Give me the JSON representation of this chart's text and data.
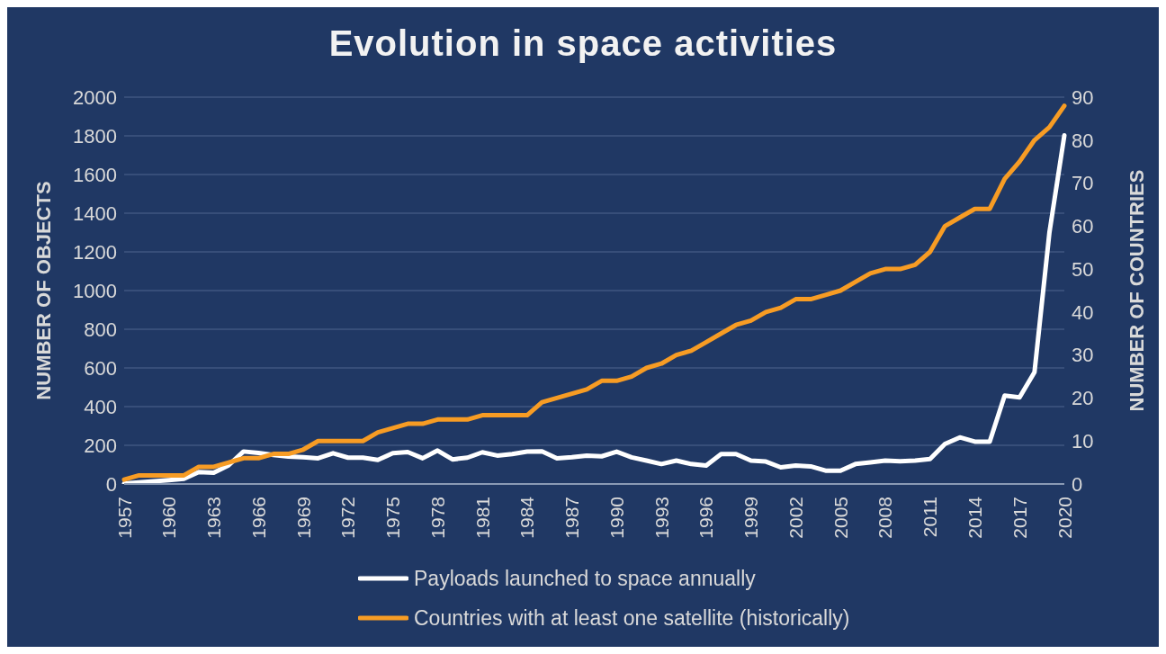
{
  "chart_data": {
    "type": "line",
    "title": "Evolution in space activities",
    "categories": [
      "1957",
      null,
      null,
      "1960",
      null,
      null,
      "1963",
      null,
      null,
      "1966",
      null,
      null,
      "1969",
      null,
      null,
      "1972",
      null,
      null,
      "1975",
      null,
      null,
      "1978",
      null,
      null,
      "1981",
      null,
      null,
      "1984",
      null,
      null,
      "1987",
      null,
      null,
      "1990",
      null,
      null,
      "1993",
      null,
      null,
      "1996",
      null,
      null,
      "1999",
      null,
      null,
      "2002",
      null,
      null,
      "2005",
      null,
      null,
      "2008",
      null,
      null,
      "2011",
      null,
      null,
      "2014",
      null,
      null,
      "2017",
      null,
      null,
      "2020"
    ],
    "series": [
      {
        "name": "Payloads launched to space annually",
        "color": "#ffffff",
        "values": [
          2,
          8,
          14,
          20,
          27,
          62,
          58,
          97,
          168,
          160,
          150,
          142,
          138,
          133,
          159,
          136,
          136,
          124,
          159,
          165,
          133,
          173,
          127,
          136,
          164,
          147,
          155,
          167,
          169,
          133,
          138,
          147,
          143,
          167,
          138,
          121,
          103,
          121,
          103,
          95,
          155,
          155,
          121,
          116,
          86,
          95,
          91,
          69,
          69,
          103,
          112,
          121,
          117,
          121,
          129,
          207,
          241,
          219,
          219,
          457,
          448,
          578,
          1300,
          1802
        ]
      },
      {
        "name": "Countries with at least one satellite (historically)",
        "color": "#f79c24",
        "axis": "y2",
        "values": [
          1,
          2,
          2,
          2,
          2,
          4,
          4,
          5,
          6,
          6,
          7,
          7,
          8,
          10,
          10,
          10,
          10,
          12,
          13,
          14,
          14,
          15,
          15,
          15,
          16,
          16,
          16,
          16,
          19,
          20,
          21,
          22,
          24,
          24,
          25,
          27,
          28,
          30,
          31,
          33,
          35,
          37,
          38,
          40,
          41,
          43,
          43,
          44,
          45,
          47,
          49,
          50,
          50,
          51,
          54,
          60,
          62,
          64,
          64,
          71,
          75,
          80,
          83,
          88
        ]
      }
    ],
    "ylabel": "NUMBER OF OBJECTS",
    "y2label": "NUMBER OF COUNTRIES",
    "ylim": [
      0,
      2000
    ],
    "yticks": [
      0,
      200,
      400,
      600,
      800,
      1000,
      1200,
      1400,
      1600,
      1800,
      2000
    ],
    "y2lim": [
      0,
      90
    ],
    "y2ticks": [
      0,
      10,
      20,
      30,
      40,
      50,
      60,
      70,
      80,
      90
    ],
    "grid": "y",
    "legend": "bottom"
  }
}
